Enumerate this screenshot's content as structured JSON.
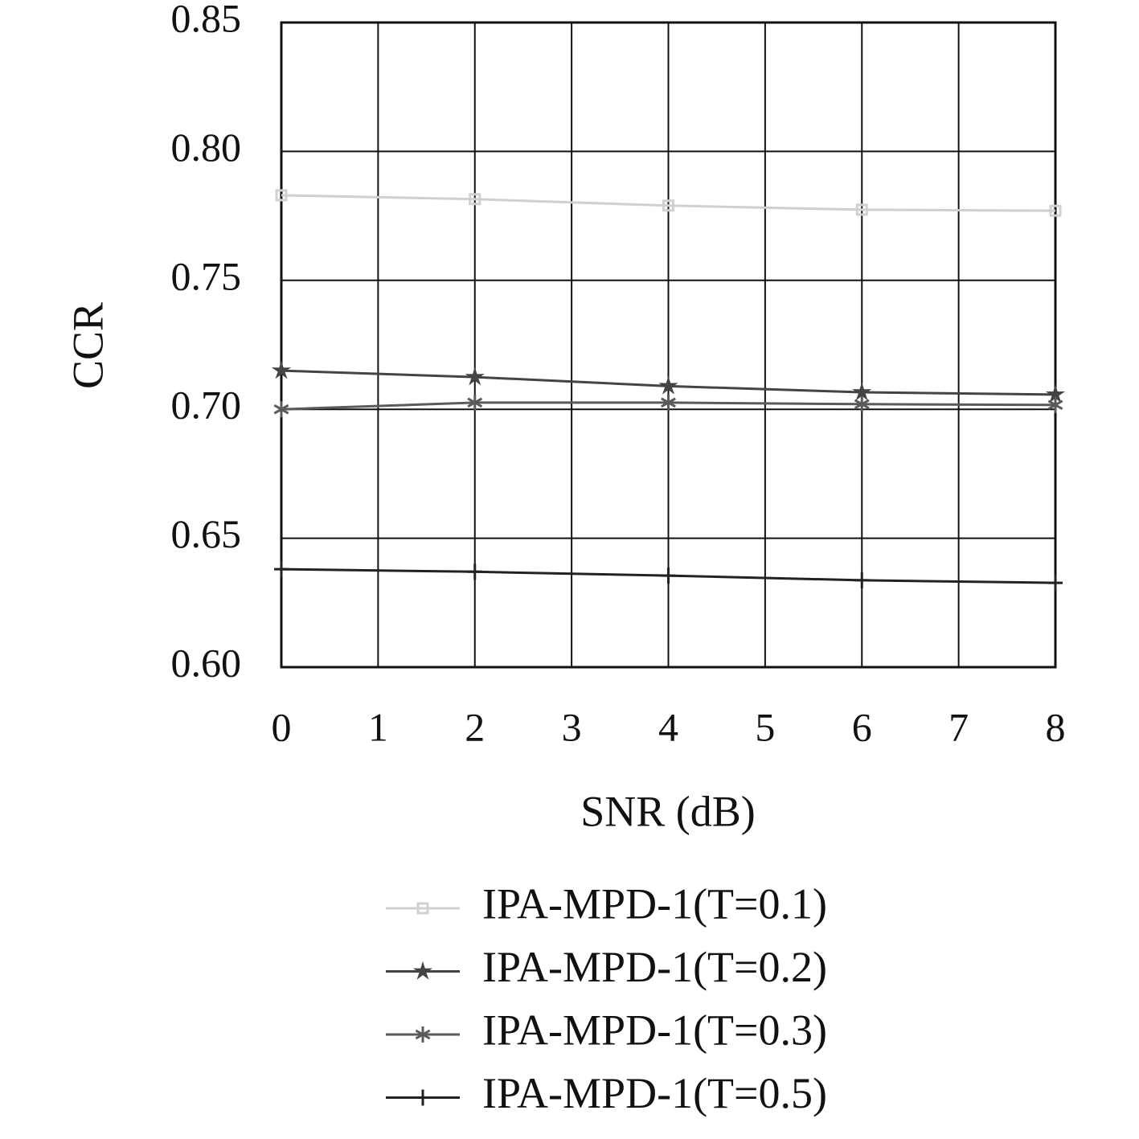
{
  "chart_data": {
    "type": "line",
    "x_label": "SNR (dB)",
    "y_label": "CCR",
    "x": [
      0,
      2,
      4,
      6,
      8
    ],
    "series": [
      {
        "name": "IPA-MPD-1(T=0.1)",
        "color": "#d0d0d0",
        "marker": "square",
        "values": [
          0.783,
          0.7815,
          0.779,
          0.7774,
          0.777
        ]
      },
      {
        "name": "IPA-MPD-1(T=0.2)",
        "color": "#444444",
        "marker": "star",
        "values": [
          0.715,
          0.7125,
          0.709,
          0.7066,
          0.7057
        ]
      },
      {
        "name": "IPA-MPD-1(T=0.3)",
        "color": "#5a5a5a",
        "marker": "asterisk",
        "values": [
          0.7,
          0.7026,
          0.7026,
          0.702,
          0.7017
        ]
      },
      {
        "name": "IPA-MPD-1(T=0.5)",
        "color": "#222222",
        "marker": "plus",
        "values": [
          0.638,
          0.637,
          0.6355,
          0.6337,
          0.6327
        ]
      }
    ],
    "xlim": [
      0,
      8
    ],
    "xticks": [
      0,
      1,
      2,
      3,
      4,
      5,
      6,
      7,
      8
    ],
    "ylim": [
      0.6,
      0.85
    ],
    "yticks": [
      {
        "value": 0.6,
        "label": "0.60"
      },
      {
        "value": 0.65,
        "label": "0.65"
      },
      {
        "value": 0.7,
        "label": "0.70"
      },
      {
        "value": 0.75,
        "label": "0.75"
      },
      {
        "value": 0.8,
        "label": "0.80"
      },
      {
        "value": 0.85,
        "label": "0.85"
      }
    ],
    "grid": true,
    "legend": "bottom"
  }
}
